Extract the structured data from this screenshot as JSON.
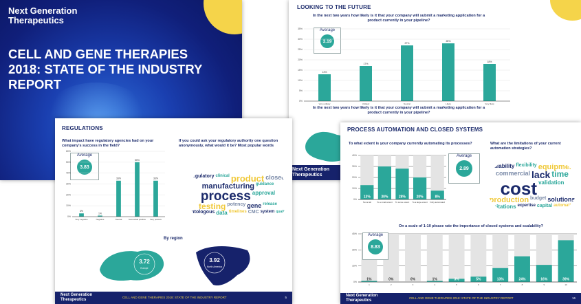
{
  "cover": {
    "brand": "Next Generation Therapeutics",
    "title": "CELL AND GENE THERAPIES 2018: STATE OF THE INDUSTRY REPORT"
  },
  "future": {
    "title": "LOOKING TO THE FUTURE",
    "question": "In the next two years how likely is it that your company will submit a marketing application for a product currently in your pipeline?",
    "average_label": "Average",
    "average": 3.19,
    "chart": {
      "categories": [
        "Very unlikely",
        "Unlikely",
        "Neutral",
        "Likely",
        "Very likely"
      ],
      "values": [
        13,
        17,
        27,
        28,
        18
      ],
      "value_labels": [
        "13%",
        "17%",
        "27%",
        "28%",
        "18%"
      ],
      "ylim": [
        0,
        35
      ],
      "yticks": [
        {
          "value": 0,
          "label": "0%"
        },
        {
          "value": 5,
          "label": "5%"
        },
        {
          "value": 10,
          "label": "10%"
        },
        {
          "value": 15,
          "label": "15%"
        },
        {
          "value": 20,
          "label": "20%"
        },
        {
          "value": 25,
          "label": "25%"
        },
        {
          "value": 30,
          "label": "30%"
        },
        {
          "value": 35,
          "label": "35%"
        }
      ]
    },
    "question_2": "In the next two years how likely is it that your company will submit a marketing application for a product currently in your pipeline?",
    "brand": "Next Generation Therapeutics"
  },
  "regulations": {
    "title": "REGULATIONS",
    "question": "What impact have regulatory agencies had on your company's success in the field?",
    "average_label": "Average",
    "average": 3.83,
    "chart": {
      "categories": [
        "Very negative",
        "Negative",
        "Neutral",
        "Somewhat positive",
        "Very positive"
      ],
      "values": [
        3,
        1,
        33,
        50,
        33
      ],
      "value_labels": [
        "3%",
        "1%",
        "33%",
        "50%",
        "33%"
      ],
      "ylim": [
        0,
        60
      ],
      "yticks": [
        {
          "value": 0,
          "label": "0%"
        },
        {
          "value": 10,
          "label": "10%"
        },
        {
          "value": 20,
          "label": "20%"
        },
        {
          "value": 30,
          "label": "30%"
        },
        {
          "value": 40,
          "label": "40%"
        },
        {
          "value": 50,
          "label": "50%"
        },
        {
          "value": 60,
          "label": "60%"
        }
      ]
    },
    "cloud_question": "If you could ask your regulatory authority one question anonymously, what would it be? Most popular words",
    "words": [
      "regulatory",
      "clinical",
      "product",
      "closed",
      "manufacturing",
      "guidance",
      "process",
      "approval",
      "testing",
      "potency",
      "gene",
      "release",
      "autologous",
      "data",
      "timelines",
      "CMC",
      "system",
      "quality"
    ],
    "region_title": "By region",
    "regions": [
      {
        "value": 3.72,
        "name": "Europe"
      },
      {
        "value": 3.92,
        "name": "North America"
      }
    ],
    "footer": {
      "brand": "Next Generation Therapeutics",
      "report": "CELL AND GENE THERAPIES 2018: STATE OF THE INDUSTRY REPORT",
      "page": 5
    }
  },
  "process": {
    "title": "PROCESS AUTOMATION AND CLOSED SYSTEMS",
    "question": "To what extent is your company currently automating its processes?",
    "average_label": "Average",
    "average": 2.89,
    "chart": {
      "categories": [
        "Not at all",
        "To a small extent",
        "To some extent",
        "To a large extent",
        "Fully automated"
      ],
      "values": [
        13,
        30,
        28,
        20,
        8
      ],
      "value_labels": [
        "13%",
        "30%",
        "28%",
        "20%",
        "8%"
      ],
      "ylim": [
        0,
        40
      ],
      "yticks": [
        {
          "value": 0,
          "label": "0%"
        },
        {
          "value": 10,
          "label": "10%"
        },
        {
          "value": 20,
          "label": "20%"
        },
        {
          "value": 30,
          "label": "30%"
        },
        {
          "value": 40,
          "label": "40%"
        }
      ]
    },
    "cloud_question": "What are the limitations of your current automation strategies?",
    "words": [
      "scalability",
      "flexibility",
      "equipment",
      "commercial",
      "lack",
      "time",
      "cost",
      "validation",
      "production",
      "budget",
      "solutions",
      "limitations",
      "expertise",
      "capital",
      "automation"
    ],
    "question_2": "On a scale of 1-10 please rate the importance of closed systems and scalability?",
    "average_2_label": "Average",
    "average_2": 8.83,
    "chart_2": {
      "categories": [
        "1",
        "2",
        "3",
        "4",
        "5",
        "6",
        "7",
        "8",
        "9",
        "10"
      ],
      "values": [
        1,
        0,
        0,
        1,
        3,
        5,
        13,
        24,
        16,
        39
      ],
      "value_labels": [
        "1%",
        "0%",
        "0%",
        "1%",
        "3%",
        "5%",
        "13%",
        "24%",
        "16%",
        "39%"
      ],
      "ylim": [
        0,
        45
      ],
      "yticks": [
        {
          "value": 0,
          "label": "0%"
        },
        {
          "value": 15,
          "label": "15%"
        },
        {
          "value": 30,
          "label": "30%"
        },
        {
          "value": 45,
          "label": "45%"
        }
      ]
    },
    "footer": {
      "brand": "Next Generation Therapeutics",
      "report": "CELL AND GENE THERAPIES 2018: STATE OF THE INDUSTRY REPORT",
      "page": 16
    }
  }
}
